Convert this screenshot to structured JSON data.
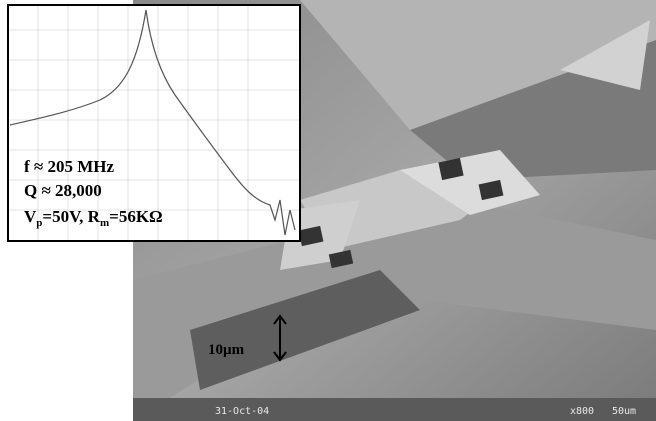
{
  "inset": {
    "lines": [
      [
        "f ≈ 205 MHz"
      ],
      [
        "Q ≈ 28,000"
      ],
      [
        "V",
        "p",
        "=50V, R",
        "m",
        "=56KΩ"
      ]
    ]
  },
  "image": {
    "scale_label": "10µm",
    "date": "31-Oct-04",
    "magnification": "x800",
    "scale_bar": "50um"
  }
}
